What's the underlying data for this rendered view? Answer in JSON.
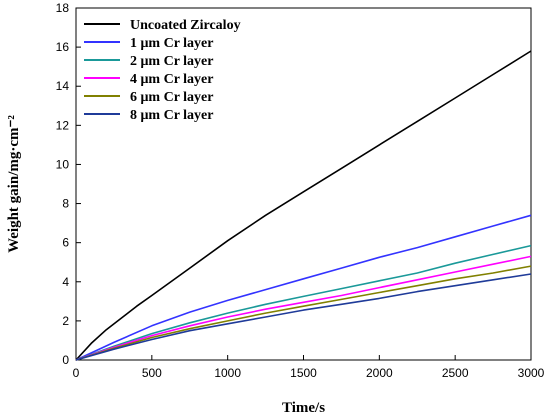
{
  "chart_data": {
    "type": "line",
    "xlabel": "Time/s",
    "ylabel": "Weight gain/mg·cm⁻²",
    "xlim": [
      0,
      3000
    ],
    "ylim": [
      0,
      18
    ],
    "xticks": [
      0,
      500,
      1000,
      1500,
      2000,
      2500,
      3000
    ],
    "yticks": [
      0,
      2,
      4,
      6,
      8,
      10,
      12,
      14,
      16,
      18
    ],
    "grid": false,
    "legend_position": "top-left",
    "series": [
      {
        "name": "Uncoated Zircaloy",
        "color": "#000000",
        "x": [
          0,
          100,
          200,
          300,
          400,
          500,
          750,
          1000,
          1250,
          1500,
          1750,
          2000,
          2250,
          2500,
          2750,
          3000
        ],
        "y": [
          0,
          0.85,
          1.55,
          2.15,
          2.75,
          3.3,
          4.7,
          6.1,
          7.4,
          8.6,
          9.8,
          11.0,
          12.2,
          13.4,
          14.6,
          15.8
        ]
      },
      {
        "name": "1 μm Cr layer",
        "color": "#3333ff",
        "x": [
          0,
          250,
          500,
          750,
          1000,
          1250,
          1500,
          1750,
          2000,
          2250,
          2500,
          2750,
          3000
        ],
        "y": [
          0,
          0.9,
          1.75,
          2.45,
          3.05,
          3.6,
          4.15,
          4.7,
          5.25,
          5.75,
          6.3,
          6.85,
          7.4
        ]
      },
      {
        "name": "2 μm Cr layer",
        "color": "#1a9999",
        "x": [
          0,
          250,
          500,
          750,
          1000,
          1250,
          1500,
          1750,
          2000,
          2250,
          2500,
          2750,
          3000
        ],
        "y": [
          0,
          0.7,
          1.35,
          1.9,
          2.4,
          2.85,
          3.25,
          3.65,
          4.05,
          4.45,
          4.95,
          5.4,
          5.85
        ]
      },
      {
        "name": "4 μm Cr layer",
        "color": "#ff00ff",
        "x": [
          0,
          250,
          500,
          750,
          1000,
          1250,
          1500,
          1750,
          2000,
          2250,
          2500,
          2750,
          3000
        ],
        "y": [
          0,
          0.65,
          1.25,
          1.75,
          2.2,
          2.6,
          2.95,
          3.3,
          3.7,
          4.1,
          4.5,
          4.9,
          5.3
        ]
      },
      {
        "name": "6 μm Cr layer",
        "color": "#808000",
        "x": [
          0,
          250,
          500,
          750,
          1000,
          1250,
          1500,
          1750,
          2000,
          2250,
          2500,
          2750,
          3000
        ],
        "y": [
          0,
          0.6,
          1.15,
          1.6,
          2.0,
          2.4,
          2.75,
          3.1,
          3.45,
          3.8,
          4.15,
          4.45,
          4.8
        ]
      },
      {
        "name": "8 μm Cr layer",
        "color": "#1f3b99",
        "x": [
          0,
          250,
          500,
          750,
          1000,
          1250,
          1500,
          1750,
          2000,
          2250,
          2500,
          2750,
          3000
        ],
        "y": [
          0,
          0.55,
          1.05,
          1.5,
          1.85,
          2.2,
          2.55,
          2.85,
          3.15,
          3.5,
          3.8,
          4.1,
          4.4
        ]
      }
    ]
  }
}
